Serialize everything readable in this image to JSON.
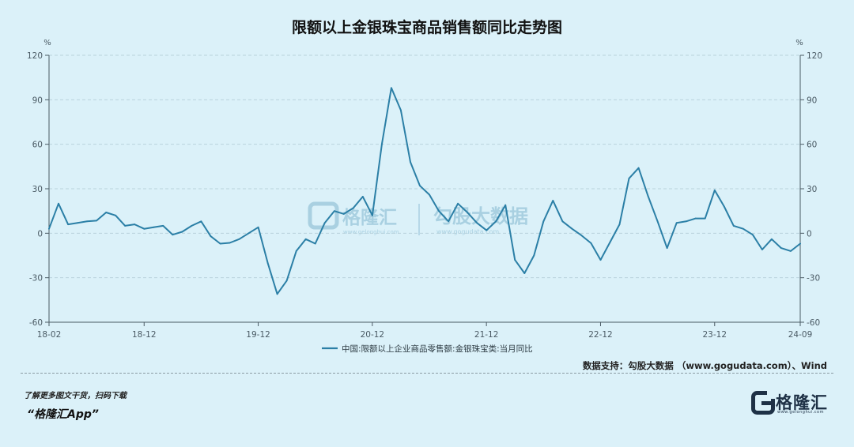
{
  "title": "限额以上金银珠宝商品销售额同比走势图",
  "source": "数据支持：勾股大数据 （www.gogudata.com）、Wind",
  "promo": {
    "line1": "了解更多图文干货，扫码下载",
    "line2": "“格隆汇App”"
  },
  "logo": {
    "text": "格隆汇",
    "sub": "www.gelonghui.com",
    "icon": "g-logo-icon"
  },
  "watermark": {
    "left_text": "格隆汇",
    "left_sub": "www.gelonghui.com",
    "right_text": "勾股大数据",
    "right_sub": "www.gogudata.com"
  },
  "colors": {
    "background": "#dbf1f9",
    "series": "#2b7fa6",
    "grid": "#b9d2dc",
    "axis": "#4a5a64"
  },
  "chart_data": {
    "type": "line",
    "ylabel_left": "%",
    "ylabel_right": "%",
    "ylim": [
      -60,
      120
    ],
    "yticks": [
      -60,
      -30,
      0,
      30,
      60,
      90,
      120
    ],
    "xtick_labels": [
      "18-02",
      "18-12",
      "19-12",
      "20-12",
      "21-12",
      "22-12",
      "23-12",
      "24-09"
    ],
    "xtick_indices": [
      0,
      10,
      22,
      34,
      46,
      58,
      70,
      79
    ],
    "grid": true,
    "legend_position": "bottom",
    "series": [
      {
        "name": "中国:限额以上企业商品零售额:金银珠宝类:当月同比",
        "x": [
          "2018-02",
          "2018-03",
          "2018-04",
          "2018-05",
          "2018-06",
          "2018-07",
          "2018-08",
          "2018-09",
          "2018-10",
          "2018-11",
          "2018-12",
          "2019-01",
          "2019-02",
          "2019-03",
          "2019-04",
          "2019-05",
          "2019-06",
          "2019-07",
          "2019-08",
          "2019-09",
          "2019-10",
          "2019-11",
          "2019-12",
          "2020-01",
          "2020-02",
          "2020-03",
          "2020-04",
          "2020-05",
          "2020-06",
          "2020-07",
          "2020-08",
          "2020-09",
          "2020-10",
          "2020-11",
          "2020-12",
          "2021-01",
          "2021-02",
          "2021-03",
          "2021-04",
          "2021-05",
          "2021-06",
          "2021-07",
          "2021-08",
          "2021-09",
          "2021-10",
          "2021-11",
          "2021-12",
          "2022-01",
          "2022-02",
          "2022-03",
          "2022-04",
          "2022-05",
          "2022-06",
          "2022-07",
          "2022-08",
          "2022-09",
          "2022-10",
          "2022-11",
          "2022-12",
          "2023-01",
          "2023-02",
          "2023-03",
          "2023-04",
          "2023-05",
          "2023-06",
          "2023-07",
          "2023-08",
          "2023-09",
          "2023-10",
          "2023-11",
          "2023-12",
          "2024-01",
          "2024-02",
          "2024-03",
          "2024-04",
          "2024-05",
          "2024-06",
          "2024-07",
          "2024-08",
          "2024-09"
        ],
        "values": [
          3,
          20,
          6,
          7,
          8,
          8.5,
          14,
          12,
          5,
          6,
          3,
          4,
          5,
          -1,
          1,
          5,
          8,
          -2,
          -7,
          -6.5,
          -4,
          0,
          4,
          -20,
          -41,
          -32,
          -12,
          -4,
          -7,
          7,
          15,
          13,
          17,
          24.7,
          12,
          60,
          98,
          83,
          48,
          32,
          26,
          15,
          8,
          20,
          14,
          7,
          2,
          8,
          19,
          -18,
          -27,
          -15,
          8,
          22,
          8,
          3,
          -1.5,
          -6.7,
          -18,
          -6,
          6,
          37,
          44,
          25,
          8,
          -10,
          7,
          8,
          10,
          10,
          29,
          18,
          5,
          3,
          -1,
          -11,
          -4,
          -10,
          -12,
          -7
        ]
      }
    ]
  }
}
